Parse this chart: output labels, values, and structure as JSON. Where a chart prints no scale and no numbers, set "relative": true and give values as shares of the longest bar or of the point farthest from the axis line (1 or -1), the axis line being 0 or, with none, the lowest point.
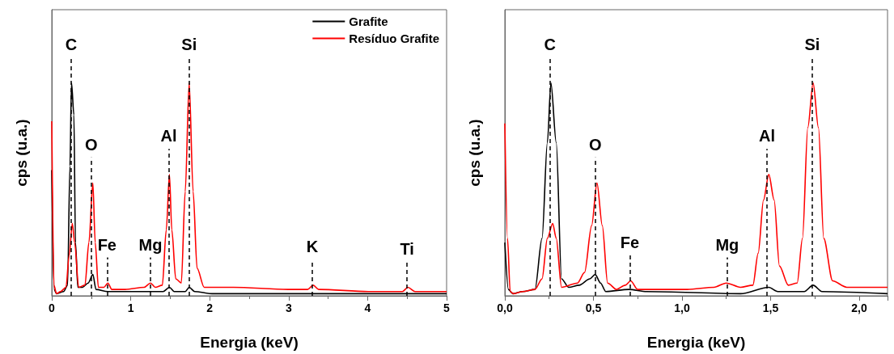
{
  "chart_data": [
    {
      "type": "line",
      "xlabel": "Energia (keV)",
      "ylabel": "cps (u.a.)",
      "relative": true,
      "xlim": [
        0,
        5
      ],
      "xticks": [
        0,
        1,
        2,
        3,
        4,
        5
      ],
      "legend": "top right",
      "series": [
        {
          "name": "Grafite",
          "color": "#000000",
          "x": [
            0,
            0.03,
            0.06,
            0.15,
            0.2,
            0.23,
            0.25,
            0.28,
            0.3,
            0.33,
            0.39,
            0.46,
            0.52,
            0.56,
            0.71,
            0.93,
            1.41,
            1.49,
            1.55,
            1.69,
            1.74,
            1.81,
            2.03,
            3.33,
            5
          ],
          "values": [
            0.59,
            0.03,
            0.01,
            0.02,
            0.05,
            0.61,
            1.0,
            0.85,
            0.25,
            0.04,
            0.04,
            0.06,
            0.1,
            0.03,
            0.02,
            0.02,
            0.02,
            0.04,
            0.02,
            0.02,
            0.04,
            0.02,
            0.01,
            0.01,
            0.01
          ]
        },
        {
          "name": "Resíduo Grafite",
          "color": "#ff0000",
          "x": [
            0,
            0.027,
            0.06,
            0.11,
            0.18,
            0.22,
            0.26,
            0.29,
            0.34,
            0.42,
            0.47,
            0.52,
            0.55,
            0.59,
            0.66,
            0.71,
            0.76,
            0.93,
            1.17,
            1.25,
            1.31,
            1.4,
            1.45,
            1.49,
            1.52,
            1.57,
            1.64,
            1.69,
            1.74,
            1.79,
            1.84,
            1.93,
            2.01,
            2.3,
            2.99,
            3.24,
            3.31,
            3.38,
            4.01,
            4.44,
            4.51,
            4.6,
            5
          ],
          "values": [
            0.82,
            0.05,
            0.01,
            0.02,
            0.04,
            0.19,
            0.34,
            0.25,
            0.04,
            0.05,
            0.25,
            0.53,
            0.25,
            0.04,
            0.04,
            0.06,
            0.03,
            0.03,
            0.04,
            0.06,
            0.04,
            0.05,
            0.31,
            0.57,
            0.31,
            0.08,
            0.06,
            0.49,
            1.0,
            0.49,
            0.13,
            0.04,
            0.04,
            0.04,
            0.03,
            0.03,
            0.05,
            0.03,
            0.02,
            0.02,
            0.04,
            0.02,
            0.02
          ]
        }
      ],
      "ref_lines": [
        {
          "axis": "x",
          "value": 0.245,
          "label": "C",
          "color": "#000000",
          "line_style": "dashed"
        },
        {
          "axis": "x",
          "value": 0.5,
          "label": "O",
          "color": "#000000",
          "line_style": "dashed"
        },
        {
          "axis": "x",
          "value": 0.7,
          "label": "Fe",
          "color": "#000000",
          "line_style": "dashed"
        },
        {
          "axis": "x",
          "value": 1.25,
          "label": "Mg",
          "color": "#000000",
          "line_style": "dashed"
        },
        {
          "axis": "x",
          "value": 1.48,
          "label": "Al",
          "color": "#000000",
          "line_style": "dashed"
        },
        {
          "axis": "x",
          "value": 1.74,
          "label": "Si",
          "color": "#000000",
          "line_style": "dashed"
        },
        {
          "axis": "x",
          "value": 3.3,
          "label": "K",
          "color": "#000000",
          "line_style": "dashed"
        },
        {
          "axis": "x",
          "value": 4.5,
          "label": "Ti",
          "color": "#000000",
          "line_style": "dashed"
        }
      ]
    },
    {
      "type": "line",
      "xlabel": "Energia (keV)",
      "ylabel": "cps (u.a.)",
      "relative": true,
      "xlim": [
        0,
        2.16
      ],
      "xticks": [
        {
          "value": 0,
          "label": "0,0"
        },
        {
          "value": 0.5,
          "label": "0,5"
        },
        {
          "value": 1,
          "label": "1,0"
        },
        {
          "value": 1.5,
          "label": "1,5"
        },
        {
          "value": 2,
          "label": "2,0"
        }
      ],
      "series": [
        {
          "color": "#000000",
          "x": [
            0,
            0.02,
            0.045,
            0.1,
            0.17,
            0.21,
            0.24,
            0.26,
            0.29,
            0.32,
            0.36,
            0.42,
            0.48,
            0.51,
            0.54,
            0.57,
            0.7,
            0.8,
            1.33,
            1.49,
            1.54,
            1.69,
            1.74,
            1.79,
            2.16
          ],
          "values": [
            0.25,
            0.03,
            0.01,
            0.02,
            0.03,
            0.27,
            0.72,
            1.0,
            0.72,
            0.08,
            0.04,
            0.05,
            0.08,
            0.1,
            0.06,
            0.02,
            0.03,
            0.02,
            0.01,
            0.04,
            0.02,
            0.02,
            0.05,
            0.02,
            0.01
          ]
        },
        {
          "color": "#ff0000",
          "x": [
            0,
            0.015,
            0.03,
            0.05,
            0.1,
            0.17,
            0.21,
            0.24,
            0.27,
            0.29,
            0.32,
            0.41,
            0.45,
            0.49,
            0.52,
            0.55,
            0.58,
            0.63,
            0.68,
            0.71,
            0.75,
            0.87,
            1.03,
            1.18,
            1.25,
            1.33,
            1.4,
            1.43,
            1.46,
            1.49,
            1.52,
            1.55,
            1.6,
            1.65,
            1.68,
            1.71,
            1.74,
            1.77,
            1.8,
            1.85,
            1.93,
            2.0,
            2.16
          ],
          "values": [
            0.81,
            0.27,
            0.02,
            0.01,
            0.02,
            0.03,
            0.08,
            0.27,
            0.34,
            0.27,
            0.04,
            0.06,
            0.11,
            0.33,
            0.53,
            0.33,
            0.06,
            0.03,
            0.05,
            0.07,
            0.03,
            0.03,
            0.03,
            0.04,
            0.06,
            0.04,
            0.05,
            0.2,
            0.45,
            0.57,
            0.45,
            0.14,
            0.05,
            0.06,
            0.27,
            0.79,
            1.0,
            0.79,
            0.27,
            0.07,
            0.04,
            0.04,
            0.04
          ]
        }
      ],
      "ref_lines": [
        {
          "axis": "x",
          "value": 0.255,
          "label": "C",
          "color": "#000000",
          "line_style": "dashed"
        },
        {
          "axis": "x",
          "value": 0.51,
          "label": "O",
          "color": "#000000",
          "line_style": "dashed"
        },
        {
          "axis": "x",
          "value": 0.705,
          "label": "Fe",
          "color": "#000000",
          "line_style": "dashed"
        },
        {
          "axis": "x",
          "value": 1.255,
          "label": "Mg",
          "color": "#000000",
          "line_style": "dashed"
        },
        {
          "axis": "x",
          "value": 1.48,
          "label": "Al",
          "color": "#000000",
          "line_style": "dashed"
        },
        {
          "axis": "x",
          "value": 1.735,
          "label": "Si",
          "color": "#000000",
          "line_style": "dashed"
        }
      ]
    }
  ]
}
